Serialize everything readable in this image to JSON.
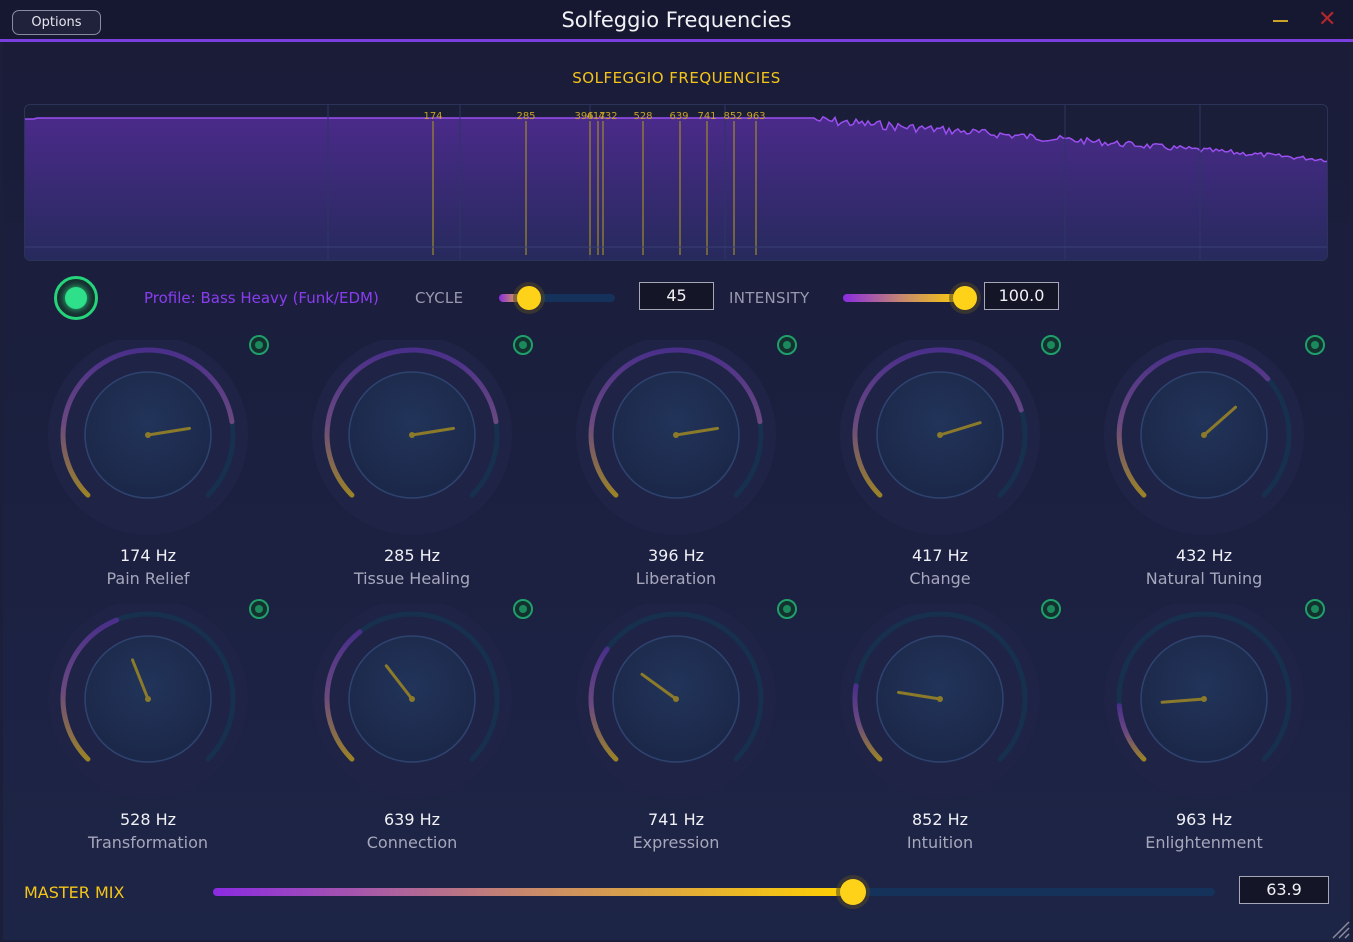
{
  "window": {
    "title": "Solfeggio Frequencies",
    "options_label": "Options",
    "minimize_icon": "minimize-icon",
    "close_icon": "close-icon",
    "close_glyph": "✕"
  },
  "spectrum": {
    "title": "SOLFEGGIO FREQUENCIES",
    "markers": [
      "174",
      "285",
      "396",
      "417",
      "432",
      "528",
      "639",
      "741",
      "852",
      "963"
    ]
  },
  "controls": {
    "power_on": true,
    "profile": "Profile: Bass Heavy (Funk/EDM)",
    "cycle_label": "CYCLE",
    "cycle_value": "45",
    "cycle_fraction": 0.26,
    "intensity_label": "INTENSITY",
    "intensity_value": "100.0",
    "intensity_fraction": 1.0
  },
  "knobs": [
    {
      "freq": "174 Hz",
      "name": "Pain Relief",
      "level": 0.8
    },
    {
      "freq": "285 Hz",
      "name": "Tissue Healing",
      "level": 0.8
    },
    {
      "freq": "396 Hz",
      "name": "Liberation",
      "level": 0.8
    },
    {
      "freq": "417 Hz",
      "name": "Change",
      "level": 0.77
    },
    {
      "freq": "432 Hz",
      "name": "Natural Tuning",
      "level": 0.68
    },
    {
      "freq": "528 Hz",
      "name": "Transformation",
      "level": 0.42
    },
    {
      "freq": "639 Hz",
      "name": "Connection",
      "level": 0.36
    },
    {
      "freq": "741 Hz",
      "name": "Expression",
      "level": 0.3
    },
    {
      "freq": "852 Hz",
      "name": "Intuition",
      "level": 0.2
    },
    {
      "freq": "963 Hz",
      "name": "Enlightenment",
      "level": 0.15
    }
  ],
  "master": {
    "label": "MASTER MIX",
    "value": "63.9",
    "fraction": 0.639
  },
  "colors": {
    "accent_purple": "#7b3fe0",
    "accent_yellow": "#f5c518",
    "led_green": "#2ee08a",
    "close_red": "#b3262b"
  }
}
